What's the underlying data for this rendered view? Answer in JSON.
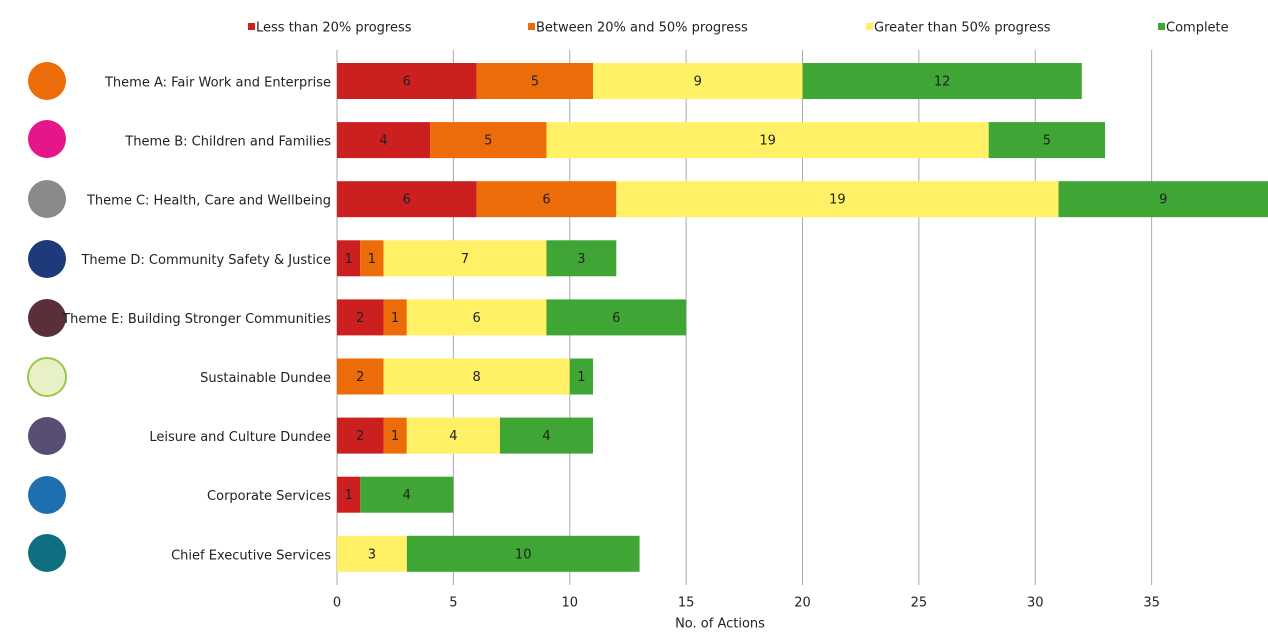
{
  "chart_data": {
    "type": "stacked-bar-horizontal",
    "x_label": "No. of Actions",
    "categories": [
      "Theme A: Fair Work and Enterprise",
      "Theme B: Children and Families",
      "Theme C: Health, Care and Wellbeing",
      "Theme D: Community Safety & Justice",
      "Theme E: Building Stronger Communities",
      "Sustainable Dundee",
      "Leisure and Culture Dundee",
      "Corporate Services",
      "Chief Executive Services"
    ],
    "series": [
      {
        "name": "Less than 20% progress",
        "color": "#cc1f1f",
        "values": [
          6,
          4,
          6,
          1,
          2,
          null,
          2,
          1,
          null
        ]
      },
      {
        "name": "Between 20% and 50% progress",
        "color": "#ec6c0a",
        "values": [
          5,
          5,
          6,
          1,
          1,
          2,
          1,
          null,
          null
        ]
      },
      {
        "name": "Greater than 50% progress",
        "color": "#fff066",
        "values": [
          9,
          19,
          19,
          7,
          6,
          8,
          4,
          null,
          3
        ]
      },
      {
        "name": "Complete",
        "color": "#3fa535",
        "values": [
          12,
          5,
          9,
          3,
          6,
          1,
          4,
          4,
          10
        ]
      }
    ],
    "xlim": [
      0,
      40
    ],
    "xticks": [
      0,
      5,
      10,
      15,
      20,
      25,
      30,
      35
    ],
    "grid": true,
    "legend": "top"
  }
}
